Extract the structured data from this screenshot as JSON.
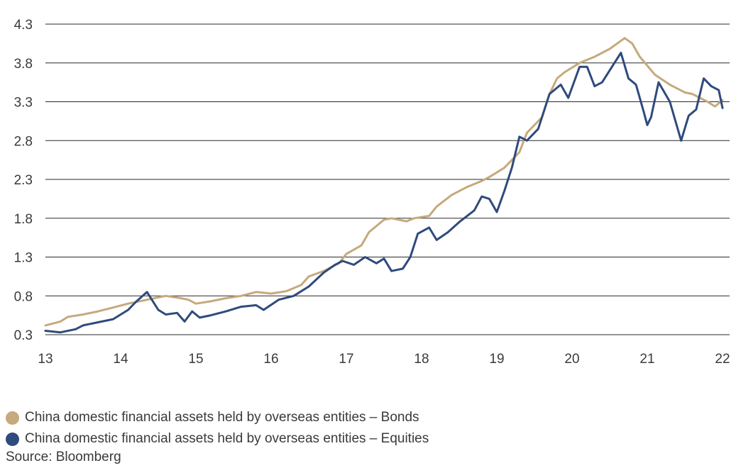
{
  "chart_data": {
    "type": "line",
    "x_ticks": [
      "13",
      "14",
      "15",
      "16",
      "17",
      "18",
      "19",
      "20",
      "21",
      "22"
    ],
    "y_ticks": [
      "0.3",
      "0.8",
      "1.3",
      "1.8",
      "2.3",
      "2.8",
      "3.3",
      "3.8",
      "4.3"
    ],
    "xlim": [
      2013,
      2022
    ],
    "ylim": [
      0.3,
      4.3
    ],
    "grid": "horizontal",
    "legend_placement": "bottom-left",
    "series": [
      {
        "name": "China domestic financial assets held by overseas entities – Bonds",
        "color": "#c6a97c",
        "points": [
          [
            2013.0,
            0.42
          ],
          [
            2013.2,
            0.47
          ],
          [
            2013.3,
            0.53
          ],
          [
            2013.5,
            0.56
          ],
          [
            2013.7,
            0.6
          ],
          [
            2013.9,
            0.65
          ],
          [
            2014.1,
            0.7
          ],
          [
            2014.3,
            0.74
          ],
          [
            2014.5,
            0.78
          ],
          [
            2014.6,
            0.8
          ],
          [
            2014.8,
            0.77
          ],
          [
            2014.9,
            0.75
          ],
          [
            2015.0,
            0.7
          ],
          [
            2015.2,
            0.73
          ],
          [
            2015.4,
            0.77
          ],
          [
            2015.6,
            0.8
          ],
          [
            2015.8,
            0.85
          ],
          [
            2016.0,
            0.83
          ],
          [
            2016.2,
            0.86
          ],
          [
            2016.4,
            0.94
          ],
          [
            2016.5,
            1.05
          ],
          [
            2016.7,
            1.12
          ],
          [
            2016.9,
            1.22
          ],
          [
            2017.0,
            1.34
          ],
          [
            2017.2,
            1.45
          ],
          [
            2017.3,
            1.62
          ],
          [
            2017.5,
            1.78
          ],
          [
            2017.6,
            1.8
          ],
          [
            2017.8,
            1.76
          ],
          [
            2017.9,
            1.8
          ],
          [
            2018.1,
            1.83
          ],
          [
            2018.2,
            1.95
          ],
          [
            2018.4,
            2.1
          ],
          [
            2018.6,
            2.2
          ],
          [
            2018.8,
            2.28
          ],
          [
            2018.9,
            2.33
          ],
          [
            2019.1,
            2.45
          ],
          [
            2019.3,
            2.65
          ],
          [
            2019.4,
            2.9
          ],
          [
            2019.6,
            3.1
          ],
          [
            2019.7,
            3.4
          ],
          [
            2019.8,
            3.6
          ],
          [
            2019.9,
            3.68
          ],
          [
            2020.1,
            3.8
          ],
          [
            2020.3,
            3.88
          ],
          [
            2020.5,
            3.98
          ],
          [
            2020.7,
            4.12
          ],
          [
            2020.8,
            4.05
          ],
          [
            2020.9,
            3.88
          ],
          [
            2021.1,
            3.65
          ],
          [
            2021.3,
            3.52
          ],
          [
            2021.5,
            3.42
          ],
          [
            2021.6,
            3.4
          ],
          [
            2021.8,
            3.3
          ],
          [
            2021.9,
            3.24
          ],
          [
            2022.0,
            3.32
          ]
        ]
      },
      {
        "name": "China domestic financial assets held by overseas entities – Equities",
        "color": "#2f4a7c",
        "points": [
          [
            2013.0,
            0.35
          ],
          [
            2013.2,
            0.33
          ],
          [
            2013.4,
            0.37
          ],
          [
            2013.5,
            0.42
          ],
          [
            2013.7,
            0.46
          ],
          [
            2013.9,
            0.5
          ],
          [
            2014.1,
            0.62
          ],
          [
            2014.2,
            0.72
          ],
          [
            2014.35,
            0.85
          ],
          [
            2014.5,
            0.62
          ],
          [
            2014.6,
            0.56
          ],
          [
            2014.75,
            0.58
          ],
          [
            2014.85,
            0.47
          ],
          [
            2014.95,
            0.6
          ],
          [
            2015.05,
            0.52
          ],
          [
            2015.2,
            0.55
          ],
          [
            2015.4,
            0.6
          ],
          [
            2015.6,
            0.66
          ],
          [
            2015.8,
            0.68
          ],
          [
            2015.9,
            0.62
          ],
          [
            2016.1,
            0.75
          ],
          [
            2016.3,
            0.8
          ],
          [
            2016.5,
            0.92
          ],
          [
            2016.7,
            1.1
          ],
          [
            2016.85,
            1.2
          ],
          [
            2016.95,
            1.25
          ],
          [
            2017.1,
            1.2
          ],
          [
            2017.25,
            1.3
          ],
          [
            2017.4,
            1.22
          ],
          [
            2017.5,
            1.28
          ],
          [
            2017.6,
            1.12
          ],
          [
            2017.75,
            1.15
          ],
          [
            2017.85,
            1.3
          ],
          [
            2017.95,
            1.6
          ],
          [
            2018.1,
            1.68
          ],
          [
            2018.2,
            1.52
          ],
          [
            2018.35,
            1.62
          ],
          [
            2018.5,
            1.75
          ],
          [
            2018.7,
            1.9
          ],
          [
            2018.8,
            2.08
          ],
          [
            2018.9,
            2.05
          ],
          [
            2019.0,
            1.88
          ],
          [
            2019.1,
            2.15
          ],
          [
            2019.2,
            2.45
          ],
          [
            2019.3,
            2.85
          ],
          [
            2019.4,
            2.8
          ],
          [
            2019.55,
            2.95
          ],
          [
            2019.7,
            3.4
          ],
          [
            2019.85,
            3.52
          ],
          [
            2019.95,
            3.35
          ],
          [
            2020.1,
            3.75
          ],
          [
            2020.2,
            3.75
          ],
          [
            2020.3,
            3.5
          ],
          [
            2020.4,
            3.55
          ],
          [
            2020.55,
            3.78
          ],
          [
            2020.65,
            3.93
          ],
          [
            2020.75,
            3.6
          ],
          [
            2020.85,
            3.52
          ],
          [
            2020.95,
            3.18
          ],
          [
            2021.0,
            3.0
          ],
          [
            2021.05,
            3.1
          ],
          [
            2021.15,
            3.55
          ],
          [
            2021.3,
            3.3
          ],
          [
            2021.45,
            2.8
          ],
          [
            2021.55,
            3.12
          ],
          [
            2021.65,
            3.2
          ],
          [
            2021.75,
            3.6
          ],
          [
            2021.85,
            3.5
          ],
          [
            2021.95,
            3.45
          ],
          [
            2022.0,
            3.22
          ]
        ]
      }
    ]
  },
  "source": "Source: Bloomberg"
}
